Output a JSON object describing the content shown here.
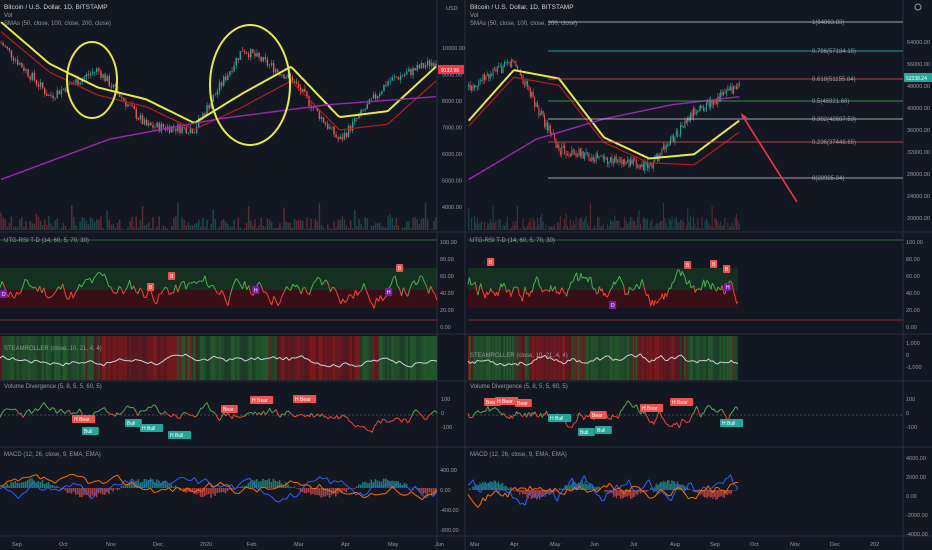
{
  "colors": {
    "bg": "#131722",
    "up": "#26a69a",
    "down": "#ef5350",
    "sma50": "#e8e84a",
    "sma100": "#b71c1c",
    "sma200": "#9c27b0",
    "fib": "#d1d4dc",
    "rsi_up": "#4caf50",
    "rsi_down": "#f44336"
  },
  "left": {
    "title": "Bitcoin / U.S. Dollar, 1D, BITSTAMP",
    "vol": "Vol",
    "sma_legend": "SMAs (50, close, 100, close, 200, close)",
    "price_badge": "9132.96",
    "price_ticks": [
      "10000.00",
      "9000.00",
      "8000.00",
      "7000.00",
      "6000.00",
      "5000.00",
      "4000.00"
    ],
    "rsi_title": "UTG-RSI T-D (14, 60, 5, 70, 30)",
    "rsi_ticks": [
      "100.00",
      "80.00",
      "60.00",
      "40.00",
      "20.00",
      "0.00"
    ],
    "steam_title": "STEAMROLLER (close, 10, 21, 4, 4)",
    "voldiv_title": "Volume Divergence (5, 8, 5, 5, 60, 5)",
    "voldiv_ticks": [
      "100",
      "0",
      "-100"
    ],
    "voldiv_tags": [
      {
        "t": "H Bear",
        "c": "down"
      },
      {
        "t": "Bull",
        "c": "up"
      },
      {
        "t": "Bull",
        "c": "up"
      },
      {
        "t": "H Bull",
        "c": "up"
      },
      {
        "t": "H Bull",
        "c": "up"
      },
      {
        "t": "Bear",
        "c": "down"
      },
      {
        "t": "H Bear",
        "c": "down"
      },
      {
        "t": "H Bear",
        "c": "down"
      }
    ],
    "rsi_tags": [
      {
        "t": "D",
        "c": "purple"
      },
      {
        "t": "B",
        "c": "down"
      },
      {
        "t": "B",
        "c": "down"
      },
      {
        "t": "H",
        "c": "purple"
      },
      {
        "t": "B",
        "c": "down"
      },
      {
        "t": "H",
        "c": "purple"
      }
    ],
    "macd_title": "MACD (12, 26, close, 9, EMA, EMA)",
    "macd_ticks": [
      "400.00",
      "0.00",
      "-400.00",
      "-800.00"
    ],
    "x_ticks": [
      "Sep",
      "Oct",
      "Nov",
      "Dec",
      "2020",
      "Feb",
      "Mar",
      "Apr",
      "May",
      "Jun"
    ]
  },
  "right": {
    "title": "Bitcoin / U.S. Dollar, 1D, BITSTAMP",
    "vol": "Vol",
    "sma_legend": "SMAs (50, close, 100, close, 200, close)",
    "currency": "USD",
    "price_badge": "52338.24",
    "price_ticks": [
      "64000.00",
      "56000.00",
      "48000.00",
      "40000.00",
      "36000.00",
      "32000.00",
      "28000.00",
      "24000.00",
      "20000.00"
    ],
    "fib_levels": [
      {
        "label": "1(64863.83)",
        "color": "#d1d4dc"
      },
      {
        "label": "0.786(57184.15)",
        "color": "#26c6da"
      },
      {
        "label": "0.618(51155.84)",
        "color": "#ef5350"
      },
      {
        "label": "0.5(46921.68)",
        "color": "#4caf50"
      },
      {
        "label": "0.382(42687.53)",
        "color": "#d1d4dc"
      },
      {
        "label": "0.236(37448.65)",
        "color": "#ef5350"
      },
      {
        "label": "0(28985.34)",
        "color": "#d1d4dc"
      }
    ],
    "rsi_title": "UTG-RSI T-D (14, 60, 5, 70, 30)",
    "rsi_ticks": [
      "100.00",
      "80.00",
      "60.00",
      "40.00",
      "20.00",
      "0.00"
    ],
    "rsi_tags": [
      {
        "t": "B",
        "c": "down"
      },
      {
        "t": "D",
        "c": "purple"
      },
      {
        "t": "B",
        "c": "down"
      },
      {
        "t": "B",
        "c": "down"
      },
      {
        "t": "B",
        "c": "down"
      },
      {
        "t": "H",
        "c": "purple"
      }
    ],
    "steam_title": "STEAMROLLER (close, 10, 21, 4, 4)",
    "steam_ticks": [
      "1,000",
      "0",
      "-1,000"
    ],
    "voldiv_title": "Volume Divergence (5, 8, 5, 5, 60, 5)",
    "voldiv_ticks": [
      "100",
      "0",
      "-100"
    ],
    "voldiv_tags": [
      {
        "t": "Bear",
        "c": "down"
      },
      {
        "t": "H Bear",
        "c": "down"
      },
      {
        "t": "Bear",
        "c": "down"
      },
      {
        "t": "H Bull",
        "c": "up"
      },
      {
        "t": "Bull",
        "c": "up"
      },
      {
        "t": "Bull",
        "c": "up"
      },
      {
        "t": "Bear",
        "c": "down"
      },
      {
        "t": "H Bear",
        "c": "down"
      },
      {
        "t": "H Bear",
        "c": "down"
      },
      {
        "t": "H Bull",
        "c": "up"
      }
    ],
    "macd_title": "MACD (12, 26, close, 9, EMA, EMA)",
    "macd_ticks": [
      "4000.00",
      "2000.00",
      "0.00",
      "-2000.00",
      "-4000.00"
    ],
    "x_ticks": [
      "Mar",
      "Apr",
      "May",
      "Jun",
      "Jul",
      "Aug",
      "Sep",
      "Oct",
      "Nov",
      "Dec",
      "202"
    ]
  },
  "chart_data": [
    {
      "type": "line",
      "title": "Bitcoin / U.S. Dollar, 1D, BITSTAMP",
      "x": [
        "Sep",
        "Oct",
        "Nov",
        "Dec",
        "2020",
        "Feb",
        "Mar",
        "Apr",
        "May",
        "Jun"
      ],
      "series": [
        {
          "name": "close",
          "values": [
            10100,
            8300,
            9200,
            7300,
            7200,
            9900,
            8900,
            6800,
            8800,
            9500
          ]
        },
        {
          "name": "SMA 50",
          "values": [
            10800,
            9400,
            8600,
            8200,
            7400,
            8400,
            9300,
            7600,
            7800,
            9300
          ]
        }
      ],
      "ylim": [
        3800,
        10600
      ]
    },
    {
      "type": "line",
      "title": "Bitcoin / U.S. Dollar, 1D, BITSTAMP",
      "x": [
        "Mar",
        "Apr",
        "May",
        "Jun",
        "Jul",
        "Aug",
        "Sep"
      ],
      "series": [
        {
          "name": "close",
          "values": [
            52000,
            58000,
            37000,
            35000,
            33000,
            46000,
            52338
          ]
        },
        {
          "name": "SMA 50",
          "values": [
            44000,
            56000,
            54000,
            40000,
            35000,
            36000,
            44000
          ]
        }
      ],
      "ylim": [
        18000,
        66000
      ]
    }
  ]
}
